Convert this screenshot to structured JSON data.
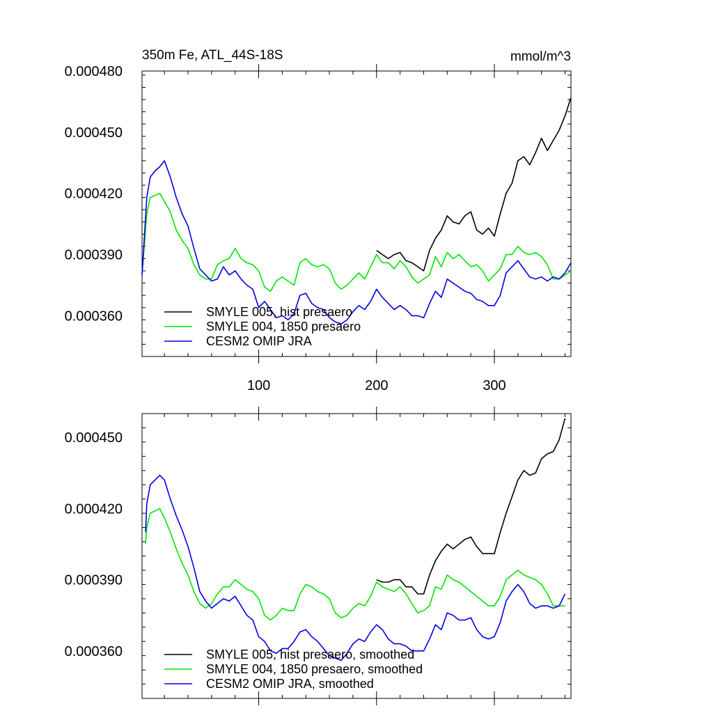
{
  "chart_data": [
    {
      "type": "line",
      "title": "350m Fe, ATL_44S-18S",
      "units": "mmol/m^3",
      "xlim": [
        1,
        365
      ],
      "ylim": [
        0.00034,
        0.00048
      ],
      "x_ticks": [
        100,
        200,
        300
      ],
      "x_tick_labels": [
        "100",
        "200",
        "300"
      ],
      "y_ticks": [
        0.00036,
        0.00039,
        0.00042,
        0.00045,
        0.00048
      ],
      "y_tick_labels": [
        "0.000360",
        "0.000390",
        "0.000420",
        "0.000450",
        "0.000480"
      ],
      "legend_position": "bottom-left",
      "series": [
        {
          "name": "SMYLE 005, hist presaero",
          "color": "#000000",
          "x": [
            200,
            205,
            210,
            215,
            220,
            225,
            230,
            235,
            240,
            245,
            250,
            255,
            260,
            265,
            270,
            275,
            280,
            285,
            290,
            295,
            300,
            305,
            310,
            315,
            320,
            325,
            330,
            335,
            340,
            345,
            350,
            355,
            360,
            365
          ],
          "values": [
            0.000392,
            0.00039,
            0.000388,
            0.00039,
            0.000391,
            0.000387,
            0.000386,
            0.000384,
            0.000382,
            0.000392,
            0.000398,
            0.000402,
            0.000409,
            0.000406,
            0.000405,
            0.000409,
            0.000411,
            0.000402,
            0.0004,
            0.000403,
            0.000399,
            0.00041,
            0.00042,
            0.000425,
            0.000436,
            0.000438,
            0.000434,
            0.00044,
            0.000447,
            0.000441,
            0.000446,
            0.000451,
            0.000458,
            0.000467
          ]
        },
        {
          "name": "SMYLE 004, 1850 presaero",
          "color": "#00e600",
          "x": [
            1,
            5,
            8,
            12,
            16,
            20,
            25,
            30,
            35,
            40,
            45,
            50,
            55,
            60,
            65,
            70,
            75,
            80,
            85,
            90,
            95,
            100,
            105,
            110,
            115,
            120,
            125,
            130,
            135,
            140,
            145,
            150,
            155,
            160,
            165,
            170,
            175,
            180,
            185,
            190,
            195,
            200,
            205,
            210,
            215,
            220,
            225,
            230,
            235,
            240,
            245,
            250,
            255,
            260,
            265,
            270,
            275,
            280,
            285,
            290,
            295,
            300,
            305,
            310,
            315,
            320,
            325,
            330,
            335,
            340,
            345,
            350,
            355,
            360,
            365
          ],
          "values": [
            0.00038,
            0.00041,
            0.000418,
            0.000419,
            0.00042,
            0.000416,
            0.000411,
            0.000402,
            0.000397,
            0.000393,
            0.000385,
            0.00038,
            0.000378,
            0.000378,
            0.000385,
            0.000387,
            0.000388,
            0.000393,
            0.000388,
            0.000386,
            0.000385,
            0.000382,
            0.000374,
            0.000372,
            0.000377,
            0.000379,
            0.000377,
            0.000375,
            0.000386,
            0.000388,
            0.000385,
            0.000384,
            0.000385,
            0.000383,
            0.000376,
            0.000373,
            0.000375,
            0.000378,
            0.000381,
            0.000378,
            0.000384,
            0.00039,
            0.000386,
            0.000386,
            0.000383,
            0.000387,
            0.000384,
            0.000379,
            0.000376,
            0.000378,
            0.00038,
            0.000389,
            0.000384,
            0.000391,
            0.000388,
            0.00039,
            0.000387,
            0.000384,
            0.000385,
            0.000382,
            0.000377,
            0.00038,
            0.000383,
            0.00039,
            0.00039,
            0.000394,
            0.000391,
            0.00039,
            0.000391,
            0.000389,
            0.000385,
            0.000378,
            0.000378,
            0.00038,
            0.000382
          ]
        },
        {
          "name": "CESM2 OMIP JRA",
          "color": "#0000e6",
          "x": [
            1,
            5,
            8,
            12,
            16,
            20,
            25,
            30,
            35,
            40,
            45,
            50,
            55,
            60,
            65,
            70,
            75,
            80,
            85,
            90,
            95,
            100,
            105,
            110,
            115,
            120,
            125,
            130,
            135,
            140,
            145,
            150,
            155,
            160,
            165,
            170,
            175,
            180,
            185,
            190,
            195,
            200,
            205,
            210,
            215,
            220,
            225,
            230,
            235,
            240,
            245,
            250,
            255,
            260,
            265,
            270,
            275,
            280,
            285,
            290,
            295,
            300,
            305,
            310,
            315,
            320,
            325,
            330,
            335,
            340,
            345,
            350,
            355,
            360,
            365
          ],
          "values": [
            0.00038,
            0.000418,
            0.000428,
            0.000431,
            0.000433,
            0.000436,
            0.000428,
            0.000418,
            0.00041,
            0.000404,
            0.000393,
            0.000383,
            0.00038,
            0.000377,
            0.000378,
            0.000384,
            0.00038,
            0.000382,
            0.000378,
            0.000375,
            0.000373,
            0.000364,
            0.000367,
            0.000363,
            0.000359,
            0.00036,
            0.000358,
            0.000361,
            0.00037,
            0.000371,
            0.000366,
            0.000364,
            0.000363,
            0.000359,
            0.000357,
            0.000356,
            0.000358,
            0.000362,
            0.000365,
            0.000363,
            0.000367,
            0.000373,
            0.000369,
            0.000366,
            0.000363,
            0.000365,
            0.000363,
            0.00036,
            0.00036,
            0.000359,
            0.000366,
            0.000372,
            0.000369,
            0.000378,
            0.000376,
            0.000374,
            0.000372,
            0.000371,
            0.000368,
            0.000367,
            0.000365,
            0.000365,
            0.00037,
            0.000381,
            0.000384,
            0.000387,
            0.000383,
            0.000379,
            0.000378,
            0.000379,
            0.000377,
            0.000379,
            0.000378,
            0.000381,
            0.000386
          ]
        }
      ]
    },
    {
      "type": "line",
      "title": "",
      "xlim": [
        1,
        365
      ],
      "ylim": [
        0.00034,
        0.00046
      ],
      "x_ticks": [
        100,
        200,
        300
      ],
      "x_tick_labels": [],
      "y_ticks": [
        0.00036,
        0.00039,
        0.00042,
        0.00045
      ],
      "y_tick_labels": [
        "0.000360",
        "0.000390",
        "0.000420",
        "0.000450"
      ],
      "legend_position": "bottom-left",
      "series": [
        {
          "name": "SMYLE 005, hist presaero, smoothed",
          "color": "#000000",
          "x": [
            200,
            205,
            210,
            215,
            220,
            225,
            230,
            235,
            240,
            245,
            250,
            255,
            260,
            265,
            270,
            275,
            280,
            285,
            290,
            295,
            300,
            305,
            310,
            315,
            320,
            325,
            330,
            335,
            340,
            345,
            350,
            355,
            360
          ],
          "values": [
            0.00039,
            0.000389,
            0.000389,
            0.00039,
            0.00039,
            0.000387,
            0.000387,
            0.000384,
            0.000384,
            0.000392,
            0.000398,
            0.000402,
            0.000405,
            0.000403,
            0.000405,
            0.000407,
            0.000408,
            0.000404,
            0.000401,
            0.000401,
            0.000401,
            0.00041,
            0.000418,
            0.000425,
            0.000432,
            0.000436,
            0.000434,
            0.000435,
            0.000441,
            0.000443,
            0.000444,
            0.000449,
            0.000458
          ]
        },
        {
          "name": "SMYLE 004, 1850 presaero, smoothed",
          "color": "#00e600",
          "x": [
            4,
            5,
            8,
            12,
            16,
            20,
            25,
            30,
            35,
            40,
            45,
            50,
            55,
            60,
            65,
            70,
            75,
            80,
            85,
            90,
            95,
            100,
            105,
            110,
            115,
            120,
            125,
            130,
            135,
            140,
            145,
            150,
            155,
            160,
            165,
            170,
            175,
            180,
            185,
            190,
            195,
            200,
            205,
            210,
            215,
            220,
            225,
            230,
            235,
            240,
            245,
            250,
            255,
            260,
            265,
            270,
            275,
            280,
            285,
            290,
            295,
            300,
            305,
            310,
            315,
            320,
            325,
            330,
            335,
            340,
            345,
            350,
            355,
            360
          ],
          "values": [
            0.000405,
            0.000412,
            0.000418,
            0.000419,
            0.00042,
            0.000416,
            0.00041,
            0.000403,
            0.000397,
            0.000392,
            0.000385,
            0.00038,
            0.000378,
            0.00038,
            0.000384,
            0.000387,
            0.000387,
            0.00039,
            0.000388,
            0.000386,
            0.000385,
            0.000382,
            0.000375,
            0.000373,
            0.000375,
            0.000378,
            0.000377,
            0.000377,
            0.000384,
            0.000388,
            0.000387,
            0.000385,
            0.000384,
            0.000382,
            0.000376,
            0.000374,
            0.000375,
            0.000378,
            0.00038,
            0.000379,
            0.000383,
            0.000389,
            0.000387,
            0.000386,
            0.000385,
            0.000387,
            0.000384,
            0.00038,
            0.000376,
            0.000377,
            0.000379,
            0.000387,
            0.000386,
            0.000392,
            0.00039,
            0.000389,
            0.000387,
            0.000385,
            0.000383,
            0.000381,
            0.000379,
            0.000379,
            0.000383,
            0.00039,
            0.000392,
            0.000394,
            0.000392,
            0.000391,
            0.00039,
            0.000388,
            0.000384,
            0.000379,
            0.000379,
            0.000379
          ]
        },
        {
          "name": "CESM2 OMIP JRA, smoothed",
          "color": "#0000e6",
          "x": [
            4,
            5,
            8,
            12,
            16,
            20,
            25,
            30,
            35,
            40,
            45,
            50,
            55,
            60,
            65,
            70,
            75,
            80,
            85,
            90,
            95,
            100,
            105,
            110,
            115,
            120,
            125,
            130,
            135,
            140,
            145,
            150,
            155,
            160,
            165,
            170,
            175,
            180,
            185,
            190,
            195,
            200,
            205,
            210,
            215,
            220,
            225,
            230,
            235,
            240,
            245,
            250,
            255,
            260,
            265,
            270,
            275,
            280,
            285,
            290,
            295,
            300,
            305,
            310,
            315,
            320,
            325,
            330,
            335,
            340,
            345,
            350,
            355,
            360
          ],
          "values": [
            0.00041,
            0.000422,
            0.00043,
            0.000432,
            0.000434,
            0.000432,
            0.000424,
            0.000417,
            0.000411,
            0.000404,
            0.000395,
            0.000385,
            0.000381,
            0.000378,
            0.00038,
            0.000382,
            0.000381,
            0.000383,
            0.000379,
            0.000375,
            0.000373,
            0.000366,
            0.000364,
            0.00036,
            0.000359,
            0.000361,
            0.000361,
            0.000364,
            0.000368,
            0.000369,
            0.000366,
            0.000364,
            0.000361,
            0.000358,
            0.000357,
            0.000356,
            0.000359,
            0.000363,
            0.000365,
            0.000364,
            0.000368,
            0.000371,
            0.000369,
            0.000365,
            0.000363,
            0.000363,
            0.000362,
            0.00036,
            0.00036,
            0.00036,
            0.000365,
            0.000371,
            0.000369,
            0.000376,
            0.000375,
            0.000373,
            0.000373,
            0.000374,
            0.000369,
            0.000366,
            0.000365,
            0.000366,
            0.000372,
            0.000381,
            0.000385,
            0.000388,
            0.000385,
            0.00038,
            0.000378,
            0.000379,
            0.000379,
            0.000378,
            0.000379,
            0.000384
          ]
        }
      ]
    }
  ]
}
